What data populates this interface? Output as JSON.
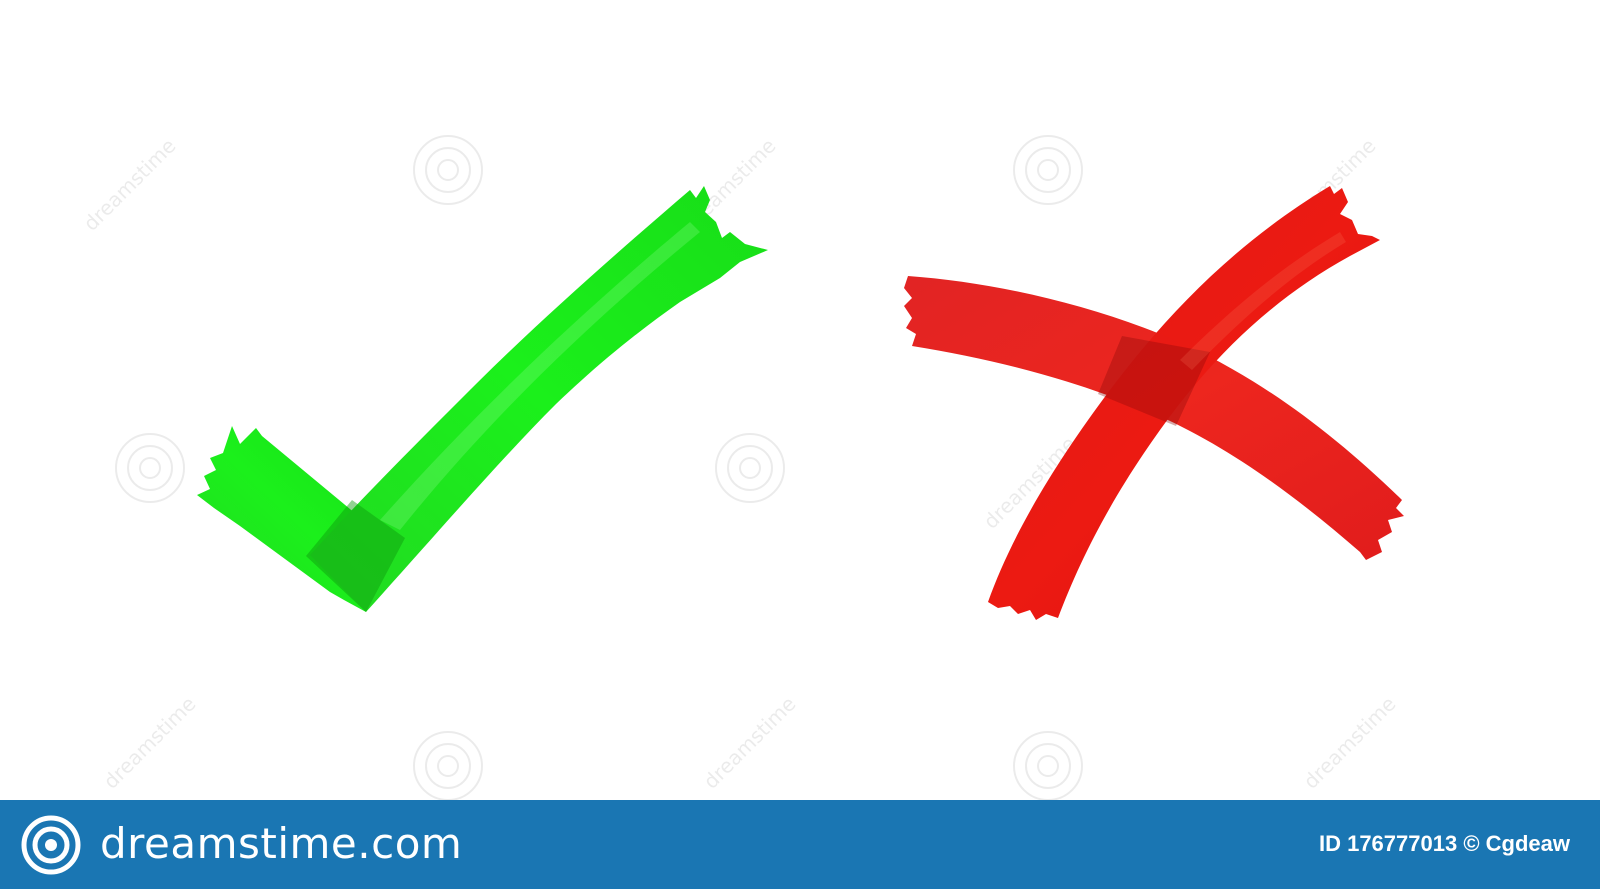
{
  "image": {
    "symbols": [
      {
        "name": "check-mark",
        "color": "#19e619"
      },
      {
        "name": "cross-mark",
        "color": "#e01010"
      }
    ],
    "watermark_text": "dreamstime"
  },
  "footer": {
    "brand": "dreamstime.com",
    "stock_id": "ID 176777013",
    "credit": "© Cgdeaw"
  }
}
